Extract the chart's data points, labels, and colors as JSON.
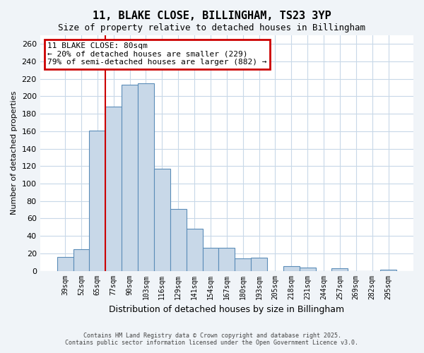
{
  "title": "11, BLAKE CLOSE, BILLINGHAM, TS23 3YP",
  "subtitle": "Size of property relative to detached houses in Billingham",
  "xlabel": "Distribution of detached houses by size in Billingham",
  "ylabel": "Number of detached properties",
  "bar_labels": [
    "39sqm",
    "52sqm",
    "65sqm",
    "77sqm",
    "90sqm",
    "103sqm",
    "116sqm",
    "129sqm",
    "141sqm",
    "154sqm",
    "167sqm",
    "180sqm",
    "193sqm",
    "205sqm",
    "218sqm",
    "231sqm",
    "244sqm",
    "257sqm",
    "269sqm",
    "282sqm",
    "295sqm"
  ],
  "bar_values": [
    16,
    25,
    161,
    188,
    213,
    215,
    117,
    71,
    48,
    26,
    26,
    14,
    15,
    0,
    5,
    4,
    0,
    3,
    0,
    0,
    1
  ],
  "bar_color": "#c8d8e8",
  "bar_edge_color": "#5b8db8",
  "ylim": [
    0,
    270
  ],
  "yticks": [
    0,
    20,
    40,
    60,
    80,
    100,
    120,
    140,
    160,
    180,
    200,
    220,
    240,
    260
  ],
  "vline_x": 3,
  "vline_color": "#cc0000",
  "annotation_title": "11 BLAKE CLOSE: 80sqm",
  "annotation_line1": "← 20% of detached houses are smaller (229)",
  "annotation_line2": "79% of semi-detached houses are larger (882) →",
  "annotation_box_color": "#cc0000",
  "footer_line1": "Contains HM Land Registry data © Crown copyright and database right 2025.",
  "footer_line2": "Contains public sector information licensed under the Open Government Licence v3.0.",
  "bg_color": "#f0f4f8",
  "plot_bg_color": "#ffffff",
  "grid_color": "#c8d8e8"
}
